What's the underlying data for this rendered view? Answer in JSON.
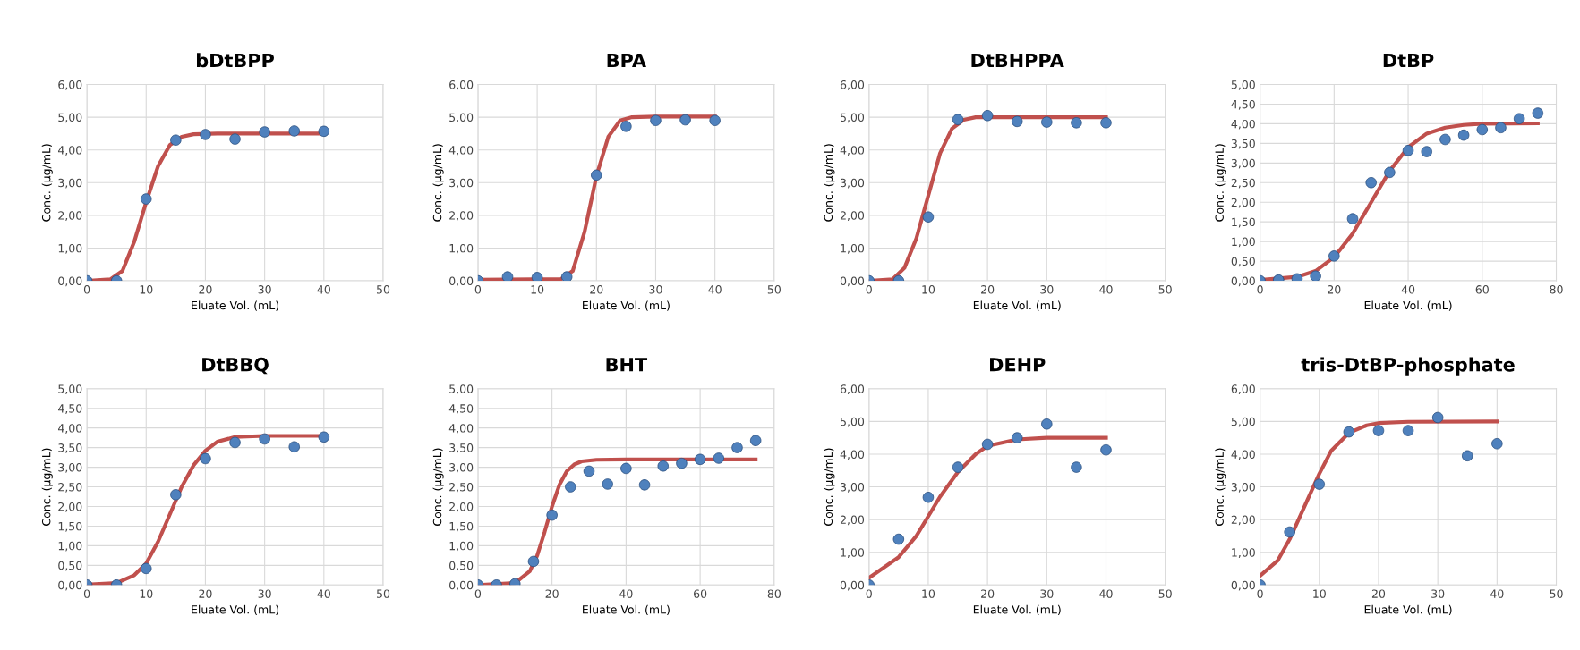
{
  "chart_data": [
    {
      "type": "scatter",
      "title": "bDtBPP",
      "xlabel": "Eluate Vol. (mL)",
      "ylabel": "Conc. (µg/mL)",
      "xlim": [
        0,
        50
      ],
      "xticks": [
        0,
        10,
        20,
        30,
        40,
        50
      ],
      "ylim": [
        0,
        6
      ],
      "yticks": [
        {
          "value": 0,
          "label": "0,00"
        },
        {
          "value": 1,
          "label": "1,00"
        },
        {
          "value": 2,
          "label": "2,00"
        },
        {
          "value": 3,
          "label": "3,00"
        },
        {
          "value": 4,
          "label": "4,00"
        },
        {
          "value": 5,
          "label": "5,00"
        },
        {
          "value": 6,
          "label": "6,00"
        }
      ],
      "grid": true,
      "series": [
        {
          "marker": "circle",
          "color": "#4f81bd",
          "x": [
            0,
            5,
            10,
            15,
            20,
            25,
            30,
            35,
            40
          ],
          "values": [
            0,
            0,
            2.5,
            4.3,
            4.47,
            4.33,
            4.55,
            4.58,
            4.57
          ]
        },
        {
          "type": "line",
          "color": "#c0504d",
          "x": [
            0,
            4,
            6,
            8,
            10,
            12,
            14,
            16,
            18,
            22,
            30,
            40
          ],
          "values": [
            0,
            0.05,
            0.3,
            1.2,
            2.4,
            3.5,
            4.15,
            4.4,
            4.48,
            4.5,
            4.5,
            4.5
          ]
        }
      ]
    },
    {
      "type": "scatter",
      "title": "BPA",
      "xlabel": "Eluate Vol. (mL)",
      "ylabel": "Conc. (µg/mL)",
      "xlim": [
        0,
        50
      ],
      "xticks": [
        0,
        10,
        20,
        30,
        40,
        50
      ],
      "ylim": [
        0,
        6
      ],
      "yticks": [
        {
          "value": 0,
          "label": "0,00"
        },
        {
          "value": 1,
          "label": "1,00"
        },
        {
          "value": 2,
          "label": "2,00"
        },
        {
          "value": 3,
          "label": "3,00"
        },
        {
          "value": 4,
          "label": "4,00"
        },
        {
          "value": 5,
          "label": "5,00"
        },
        {
          "value": 6,
          "label": "6,00"
        }
      ],
      "grid": true,
      "series": [
        {
          "marker": "circle",
          "color": "#4f81bd",
          "x": [
            0,
            5,
            10,
            15,
            20,
            25,
            30,
            35,
            40
          ],
          "values": [
            0,
            0.12,
            0.1,
            0.12,
            3.23,
            4.72,
            4.9,
            4.92,
            4.9
          ]
        },
        {
          "type": "line",
          "color": "#c0504d",
          "x": [
            0,
            14,
            16,
            18,
            20,
            22,
            24,
            26,
            30,
            40
          ],
          "values": [
            0.03,
            0.05,
            0.3,
            1.5,
            3.2,
            4.4,
            4.9,
            5.0,
            5.02,
            5.02
          ]
        }
      ]
    },
    {
      "type": "scatter",
      "title": "DtBHPPA",
      "xlabel": "Eluate Vol. (mL)",
      "ylabel": "Conc. (µg/mL)",
      "xlim": [
        0,
        50
      ],
      "xticks": [
        0,
        10,
        20,
        30,
        40,
        50
      ],
      "ylim": [
        0,
        6
      ],
      "yticks": [
        {
          "value": 0,
          "label": "0,00"
        },
        {
          "value": 1,
          "label": "1,00"
        },
        {
          "value": 2,
          "label": "2,00"
        },
        {
          "value": 3,
          "label": "3,00"
        },
        {
          "value": 4,
          "label": "4,00"
        },
        {
          "value": 5,
          "label": "5,00"
        },
        {
          "value": 6,
          "label": "6,00"
        }
      ],
      "grid": true,
      "series": [
        {
          "marker": "circle",
          "color": "#4f81bd",
          "x": [
            0,
            5,
            10,
            15,
            20,
            25,
            30,
            35,
            40
          ],
          "values": [
            0,
            0,
            1.95,
            4.93,
            5.05,
            4.87,
            4.85,
            4.83,
            4.83
          ]
        },
        {
          "type": "line",
          "color": "#c0504d",
          "x": [
            0,
            4,
            6,
            8,
            10,
            12,
            14,
            16,
            18,
            20,
            40
          ],
          "values": [
            0,
            0.05,
            0.4,
            1.3,
            2.6,
            3.9,
            4.65,
            4.92,
            5.0,
            5.0,
            5.0
          ]
        }
      ]
    },
    {
      "type": "scatter",
      "title": "DtBP",
      "xlabel": "Eluate Vol. (mL)",
      "ylabel": "Conc. (µg/mL)",
      "xlim": [
        0,
        80
      ],
      "xticks": [
        0,
        20,
        40,
        60,
        80
      ],
      "ylim": [
        0,
        5
      ],
      "yticks": [
        {
          "value": 0,
          "label": "0,00"
        },
        {
          "value": 0.5,
          "label": "0,50"
        },
        {
          "value": 1,
          "label": "1,00"
        },
        {
          "value": 1.5,
          "label": "1,50"
        },
        {
          "value": 2,
          "label": "2,00"
        },
        {
          "value": 2.5,
          "label": "2,50"
        },
        {
          "value": 3,
          "label": "3,00"
        },
        {
          "value": 3.5,
          "label": "3,50"
        },
        {
          "value": 4,
          "label": "4,00"
        },
        {
          "value": 4.5,
          "label": "4,50"
        },
        {
          "value": 5,
          "label": "5,00"
        }
      ],
      "grid": true,
      "series": [
        {
          "marker": "circle",
          "color": "#4f81bd",
          "x": [
            0,
            5,
            10,
            15,
            20,
            25,
            30,
            35,
            40,
            45,
            50,
            55,
            60,
            65,
            70,
            75
          ],
          "values": [
            0,
            0.02,
            0.05,
            0.12,
            0.63,
            1.58,
            2.5,
            2.76,
            3.32,
            3.29,
            3.6,
            3.71,
            3.85,
            3.9,
            4.13,
            4.27
          ]
        },
        {
          "type": "line",
          "color": "#c0504d",
          "x": [
            0,
            10,
            15,
            20,
            25,
            30,
            35,
            40,
            45,
            50,
            55,
            60,
            75
          ],
          "values": [
            0.02,
            0.1,
            0.25,
            0.6,
            1.2,
            2.0,
            2.8,
            3.4,
            3.75,
            3.9,
            3.97,
            4.0,
            4.01
          ]
        }
      ]
    },
    {
      "type": "scatter",
      "title": "DtBBQ",
      "xlabel": "Eluate Vol. (mL)",
      "ylabel": "Conc. (µg/mL)",
      "xlim": [
        0,
        50
      ],
      "xticks": [
        0,
        10,
        20,
        30,
        40,
        50
      ],
      "ylim": [
        0,
        5
      ],
      "yticks": [
        {
          "value": 0,
          "label": "0,00"
        },
        {
          "value": 0.5,
          "label": "0,50"
        },
        {
          "value": 1,
          "label": "1,00"
        },
        {
          "value": 1.5,
          "label": "1,50"
        },
        {
          "value": 2,
          "label": "2,00"
        },
        {
          "value": 2.5,
          "label": "2,50"
        },
        {
          "value": 3,
          "label": "3,00"
        },
        {
          "value": 3.5,
          "label": "3,50"
        },
        {
          "value": 4,
          "label": "4,00"
        },
        {
          "value": 4.5,
          "label": "4,50"
        },
        {
          "value": 5,
          "label": "5,00"
        }
      ],
      "grid": true,
      "series": [
        {
          "marker": "circle",
          "color": "#4f81bd",
          "x": [
            0,
            5,
            10,
            15,
            20,
            25,
            30,
            35,
            40
          ],
          "values": [
            0,
            0,
            0.42,
            2.3,
            3.22,
            3.63,
            3.72,
            3.52,
            3.77
          ]
        },
        {
          "type": "line",
          "color": "#c0504d",
          "x": [
            0,
            5,
            8,
            10,
            12,
            14,
            16,
            18,
            20,
            22,
            25,
            30,
            40
          ],
          "values": [
            0.01,
            0.05,
            0.25,
            0.55,
            1.1,
            1.8,
            2.5,
            3.05,
            3.42,
            3.65,
            3.77,
            3.8,
            3.8
          ]
        }
      ]
    },
    {
      "type": "scatter",
      "title": "BHT",
      "xlabel": "Eluate Vol. (mL)",
      "ylabel": "Conc. (µg/mL)",
      "xlim": [
        0,
        80
      ],
      "xticks": [
        0,
        20,
        40,
        60,
        80
      ],
      "ylim": [
        0,
        5
      ],
      "yticks": [
        {
          "value": 0,
          "label": "0,00"
        },
        {
          "value": 0.5,
          "label": "0,50"
        },
        {
          "value": 1,
          "label": "1,00"
        },
        {
          "value": 1.5,
          "label": "1,50"
        },
        {
          "value": 2,
          "label": "2,00"
        },
        {
          "value": 2.5,
          "label": "2,50"
        },
        {
          "value": 3,
          "label": "3,00"
        },
        {
          "value": 3.5,
          "label": "3,50"
        },
        {
          "value": 4,
          "label": "4,00"
        },
        {
          "value": 4.5,
          "label": "4,50"
        },
        {
          "value": 5,
          "label": "5,00"
        }
      ],
      "grid": true,
      "series": [
        {
          "marker": "circle",
          "color": "#4f81bd",
          "x": [
            0,
            5,
            10,
            15,
            20,
            25,
            30,
            35,
            40,
            45,
            50,
            55,
            60,
            65,
            70,
            75
          ],
          "values": [
            0,
            0,
            0.03,
            0.6,
            1.78,
            2.5,
            2.9,
            2.57,
            2.97,
            2.55,
            3.03,
            3.1,
            3.2,
            3.23,
            3.5,
            3.68
          ]
        },
        {
          "type": "line",
          "color": "#c0504d",
          "x": [
            0,
            10,
            14,
            16,
            18,
            20,
            22,
            24,
            26,
            28,
            32,
            40,
            75
          ],
          "values": [
            0,
            0.05,
            0.35,
            0.75,
            1.35,
            2.0,
            2.55,
            2.9,
            3.07,
            3.15,
            3.19,
            3.2,
            3.2
          ]
        }
      ]
    },
    {
      "type": "scatter",
      "title": "DEHP",
      "xlabel": "Eluate Vol. (mL)",
      "ylabel": "Conc. (µg/mL)",
      "xlim": [
        0,
        50
      ],
      "xticks": [
        0,
        10,
        20,
        30,
        40,
        50
      ],
      "ylim": [
        0,
        6
      ],
      "yticks": [
        {
          "value": 0,
          "label": "0,00"
        },
        {
          "value": 1,
          "label": "1,00"
        },
        {
          "value": 2,
          "label": "2,00"
        },
        {
          "value": 3,
          "label": "3,00"
        },
        {
          "value": 4,
          "label": "4,00"
        },
        {
          "value": 5,
          "label": "5,00"
        },
        {
          "value": 6,
          "label": "6,00"
        }
      ],
      "grid": true,
      "series": [
        {
          "marker": "circle",
          "color": "#4f81bd",
          "x": [
            0,
            5,
            10,
            15,
            20,
            25,
            30,
            35,
            40
          ],
          "values": [
            0,
            1.4,
            2.68,
            3.6,
            4.3,
            4.5,
            4.92,
            3.6,
            4.13
          ]
        },
        {
          "type": "line",
          "color": "#c0504d",
          "x": [
            0,
            5,
            8,
            10,
            12,
            15,
            18,
            20,
            25,
            30,
            40
          ],
          "values": [
            0.22,
            0.85,
            1.5,
            2.1,
            2.7,
            3.45,
            4.0,
            4.25,
            4.45,
            4.5,
            4.5
          ]
        }
      ]
    },
    {
      "type": "scatter",
      "title": "tris-DtBP-phosphate",
      "xlabel": "Eluate Vol. (mL)",
      "ylabel": "Conc. (µg/mL)",
      "xlim": [
        0,
        50
      ],
      "xticks": [
        0,
        10,
        20,
        30,
        40,
        50
      ],
      "ylim": [
        0,
        6
      ],
      "yticks": [
        {
          "value": 0,
          "label": "0,00"
        },
        {
          "value": 1,
          "label": "1,00"
        },
        {
          "value": 2,
          "label": "2,00"
        },
        {
          "value": 3,
          "label": "3,00"
        },
        {
          "value": 4,
          "label": "4,00"
        },
        {
          "value": 5,
          "label": "5,00"
        },
        {
          "value": 6,
          "label": "6,00"
        }
      ],
      "grid": true,
      "series": [
        {
          "marker": "circle",
          "color": "#4f81bd",
          "x": [
            0,
            5,
            10,
            15,
            20,
            25,
            30,
            35,
            40
          ],
          "values": [
            0,
            1.62,
            3.08,
            4.68,
            4.72,
            4.72,
            5.12,
            3.95,
            4.32
          ]
        },
        {
          "type": "line",
          "color": "#c0504d",
          "x": [
            0,
            3,
            5,
            8,
            10,
            12,
            15,
            18,
            20,
            25,
            40
          ],
          "values": [
            0.28,
            0.75,
            1.4,
            2.6,
            3.4,
            4.1,
            4.65,
            4.88,
            4.95,
            4.99,
            5.0
          ]
        }
      ]
    }
  ]
}
